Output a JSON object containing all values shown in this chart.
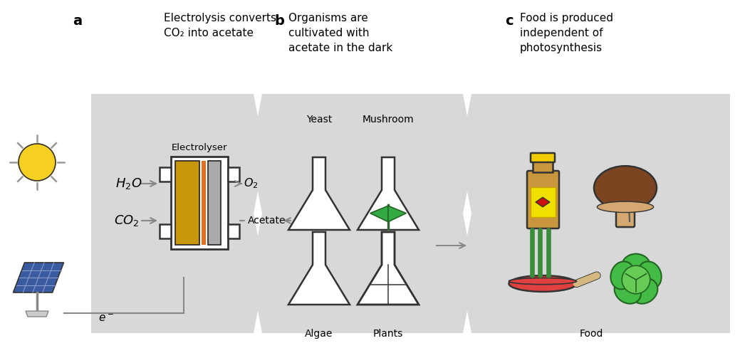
{
  "bg_color": "#ffffff",
  "zigzag_color": "#d8d8d8",
  "zigzag_edge": "#cccccc",
  "label_a": "a",
  "label_b": "b",
  "label_c": "c",
  "title_a": "Electrolysis converts\nCO₂ into acetate",
  "title_b": "Organisms are\ncultivated with\nacetate in the dark",
  "title_c": "Food is produced\nindependent of\nphotosynthesis",
  "electrolyser_label": "Electrolyser",
  "h2o_label": "$H_2O$",
  "co2_label": "$CO_2$",
  "o2_label": "$O_2$",
  "acetate_label": "Acetate",
  "electron_label": "$e^-$",
  "yeast_label": "Yeast",
  "mushroom_label": "Mushroom",
  "algae_label": "Algae",
  "plants_label": "Plants",
  "food_label": "Food",
  "sun_color": "#f5d020",
  "solar_panel_color": "#3a5ba0",
  "solar_line_color": "#8899cc",
  "electrolyser_gold": "#c8960a",
  "electrolyser_orange": "#e07020",
  "electrolyser_gray": "#aaaaaa",
  "flask_outline": "#333333",
  "flask_yeast_fill": "#c8966e",
  "flask_algae_fill": "#22aa44",
  "arrow_color": "#888888",
  "outline": "#333333"
}
